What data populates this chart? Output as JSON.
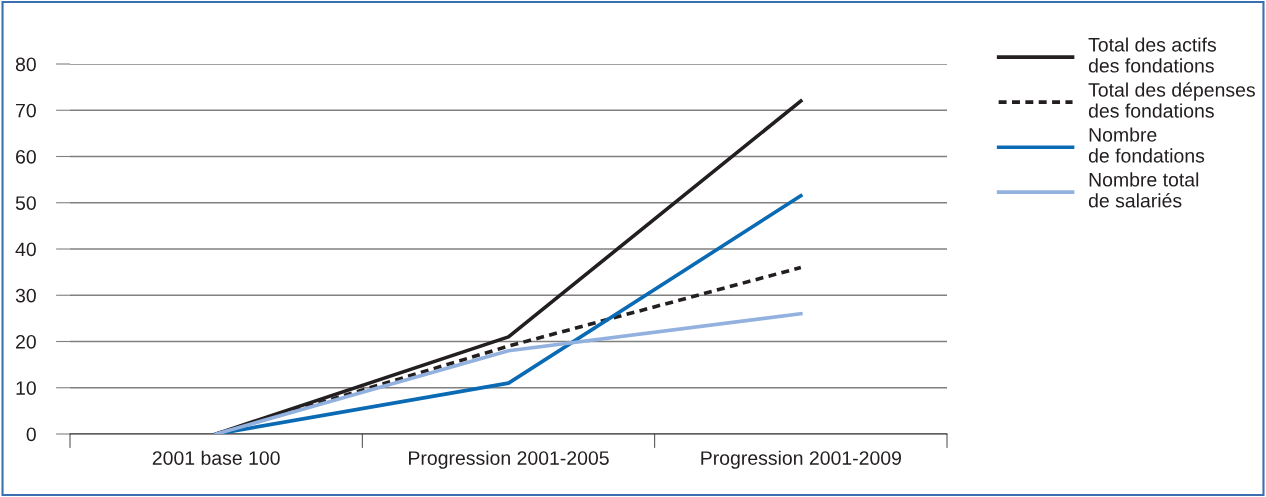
{
  "chart_data": {
    "type": "line",
    "categories": [
      "2001 base 100",
      "Progression 2001-2005",
      "Progression 2001-2009"
    ],
    "series": [
      {
        "name": "Total des actifs\ndes fondations",
        "color": "#231f20",
        "values": [
          0,
          21,
          72
        ],
        "line_style": "solid"
      },
      {
        "name": "Total des dépenses\ndes fondations",
        "color": "#231f20",
        "values": [
          0,
          19,
          36
        ],
        "line_style": "dashed"
      },
      {
        "name": "Nombre\nde fondations",
        "color": "#0a6ab3",
        "values": [
          0,
          11,
          51.5
        ],
        "line_style": "solid"
      },
      {
        "name": "Nombre total\nde salariés",
        "color": "#93b1df",
        "values": [
          0,
          18,
          26
        ],
        "line_style": "solid"
      }
    ],
    "ylim": [
      0,
      80
    ],
    "yticks": [
      0,
      10,
      20,
      30,
      40,
      50,
      60,
      70,
      80
    ],
    "grid": "y",
    "legend": "right",
    "marker": "none"
  }
}
